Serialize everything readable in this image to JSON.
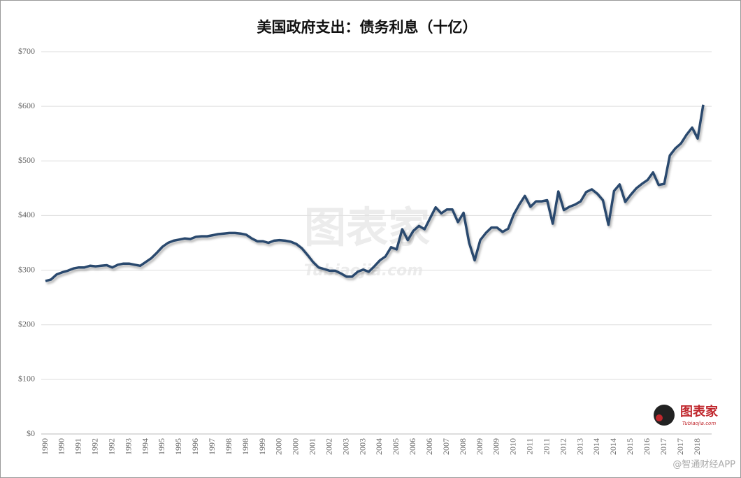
{
  "chart_data": {
    "type": "line",
    "title": "美国政府支出：债务利息（十亿）",
    "watermark": "图表家",
    "watermark_sub": "Tubiaojia.com",
    "source_mark": "@智通财经APP",
    "color": "#2b4a6e",
    "grid": true,
    "ylim": [
      0,
      700
    ],
    "yticks": [
      {
        "value": 0,
        "label": "$0"
      },
      {
        "value": 100,
        "label": "$100"
      },
      {
        "value": 200,
        "label": "$200"
      },
      {
        "value": 300,
        "label": "$300"
      },
      {
        "value": 400,
        "label": "$400"
      },
      {
        "value": 500,
        "label": "$500"
      },
      {
        "value": 600,
        "label": "$600"
      },
      {
        "value": 700,
        "label": "$700"
      }
    ],
    "categories": [
      "1990",
      null,
      null,
      "1990",
      null,
      null,
      "1991",
      null,
      null,
      "1992",
      null,
      null,
      "1992",
      null,
      null,
      "1993",
      null,
      null,
      "1994",
      null,
      null,
      "1995",
      null,
      null,
      "1995",
      null,
      null,
      "1996",
      null,
      null,
      "1997",
      null,
      null,
      "1998",
      null,
      null,
      "1998",
      null,
      null,
      "1999",
      null,
      null,
      "2000",
      null,
      null,
      "2000",
      null,
      null,
      "2001",
      null,
      null,
      "2002",
      null,
      null,
      "2003",
      null,
      null,
      "2003",
      null,
      null,
      "2004",
      null,
      null,
      "2005",
      null,
      null,
      "2006",
      null,
      null,
      "2006",
      null,
      null,
      "2007",
      null,
      null,
      "2008",
      null,
      null,
      "2009",
      null,
      null,
      "2009",
      null,
      null,
      "2010",
      null,
      null,
      "2011",
      null,
      null,
      "2011",
      null,
      null,
      "2012",
      null,
      null,
      "2013",
      null,
      null,
      "2014",
      null,
      null,
      "2014",
      null,
      null,
      "2015",
      null,
      null,
      "2016",
      null,
      null,
      "2017",
      null,
      null,
      "2017",
      null,
      null,
      "2018",
      null
    ],
    "values": [
      280,
      283,
      292,
      296,
      299,
      303,
      305,
      305,
      308,
      307,
      308,
      309,
      305,
      310,
      312,
      312,
      310,
      308,
      315,
      322,
      332,
      343,
      350,
      354,
      356,
      358,
      357,
      361,
      362,
      362,
      364,
      366,
      367,
      368,
      368,
      367,
      365,
      358,
      353,
      353,
      350,
      354,
      355,
      354,
      352,
      348,
      340,
      328,
      315,
      305,
      302,
      299,
      299,
      294,
      288,
      288,
      297,
      301,
      297,
      307,
      318,
      325,
      342,
      338,
      375,
      355,
      372,
      381,
      375,
      395,
      415,
      404,
      411,
      411,
      388,
      405,
      350,
      318,
      355,
      368,
      378,
      378,
      370,
      376,
      402,
      420,
      436,
      416,
      426,
      426,
      428,
      385,
      444,
      410,
      416,
      420,
      426,
      443,
      448,
      440,
      428,
      383,
      445,
      457,
      425,
      438,
      450,
      458,
      465,
      479,
      456,
      458,
      510,
      523,
      532,
      548,
      561,
      541,
      603
    ]
  }
}
